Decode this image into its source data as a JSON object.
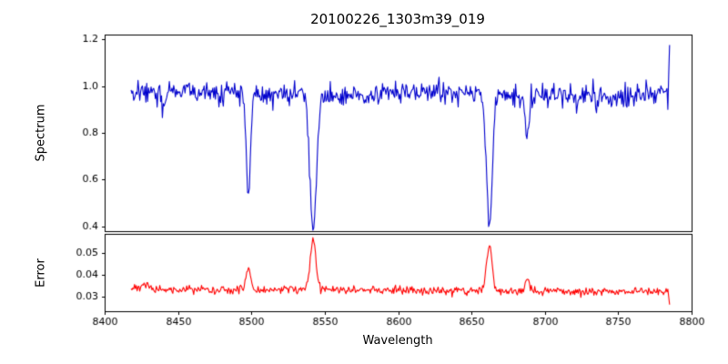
{
  "title": "20100226_1303m39_019",
  "chart_data": [
    {
      "type": "line",
      "name": "spectrum",
      "ylabel": "Spectrum",
      "line_color": "#0000cd",
      "axis_color": "#000000",
      "xlim": [
        8400,
        8800
      ],
      "ylim": [
        0.38,
        1.22
      ],
      "yticks": [
        1.2,
        1.0,
        0.8,
        0.6,
        0.4
      ],
      "ytick_labels": [
        "1.2",
        "1.0",
        "0.8",
        "0.6",
        "0.4"
      ],
      "x_data_range": [
        8418,
        8785
      ],
      "n_points": 620,
      "seed": 20100226,
      "continuum": 0.975,
      "continuum_slope": 4e-05,
      "noise_sigma": 0.022,
      "absorption_lines": [
        {
          "center": 8440.0,
          "depth": 0.09,
          "sigma": 1.2
        },
        {
          "center": 8498.0,
          "depth": 0.45,
          "sigma": 1.5
        },
        {
          "center": 8542.1,
          "depth": 0.585,
          "sigma": 2.2
        },
        {
          "center": 8662.1,
          "depth": 0.565,
          "sigma": 2.0
        },
        {
          "center": 8688.0,
          "depth": 0.19,
          "sigma": 1.3
        }
      ],
      "edge_spike": {
        "x": 8784,
        "value": 1.175
      }
    },
    {
      "type": "line",
      "name": "error",
      "ylabel": "Error",
      "xlabel": "Wavelength",
      "line_color": "#ff0000",
      "axis_color": "#000000",
      "xlim": [
        8400,
        8800
      ],
      "ylim": [
        0.0235,
        0.0585
      ],
      "yticks": [
        0.05,
        0.04,
        0.03
      ],
      "ytick_labels": [
        "0.05",
        "0.04",
        "0.03"
      ],
      "xticks": [
        8400,
        8450,
        8500,
        8550,
        8600,
        8650,
        8700,
        8750,
        8800
      ],
      "xtick_labels": [
        "8400",
        "8450",
        "8500",
        "8550",
        "8600",
        "8650",
        "8700",
        "8750",
        "8800"
      ],
      "x_data_range": [
        8418,
        8785
      ],
      "n_points": 620,
      "seed": 1303,
      "baseline": 0.0335,
      "baseline_slope": 3.5e-06,
      "noise_sigma": 0.0009,
      "peaks": [
        {
          "center": 8425.0,
          "height": 0.0015,
          "sigma": 4.0
        },
        {
          "center": 8498.0,
          "height": 0.011,
          "sigma": 1.5
        },
        {
          "center": 8542.1,
          "height": 0.022,
          "sigma": 2.0
        },
        {
          "center": 8662.1,
          "height": 0.021,
          "sigma": 1.8
        },
        {
          "center": 8688.0,
          "height": 0.005,
          "sigma": 1.3
        }
      ],
      "edge_drop": 0.0265
    }
  ]
}
